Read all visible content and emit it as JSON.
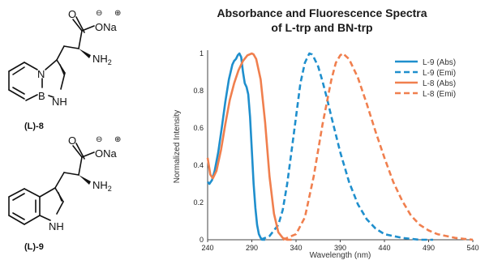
{
  "molecules": {
    "top": {
      "label": "(L)-8",
      "atoms": {
        "O": "O",
        "ONa": "ONa",
        "N_ring": "N",
        "B": "B",
        "NH": "NH",
        "NH2": "NH",
        "NH2_sub": "2",
        "minus": "⊖",
        "plus": "⊕"
      }
    },
    "bottom": {
      "label": "(L)-9",
      "atoms": {
        "O": "O",
        "ONa": "ONa",
        "NH": "NH",
        "NH2": "NH",
        "NH2_sub": "2",
        "minus": "⊖",
        "plus": "⊕"
      }
    }
  },
  "chart_data": {
    "type": "line",
    "title": "Absorbance and Fluorescence Spectra",
    "subtitle": "of L-trp and BN-trp",
    "xlabel": "Wavelength (nm)",
    "ylabel": "Normalized Intensity",
    "xlim": [
      240,
      540
    ],
    "ylim": [
      0,
      1
    ],
    "xticks": [
      240,
      290,
      340,
      390,
      440,
      490,
      540
    ],
    "yticks": [
      0,
      0.2,
      0.4,
      0.6,
      0.8,
      1
    ],
    "grid": false,
    "legend": "top-right",
    "series": [
      {
        "name": "L-9 (Abs)",
        "color": "#1f8fcd",
        "dash": "solid",
        "x": [
          240,
          242,
          245,
          248,
          252,
          256,
          260,
          264,
          268,
          270,
          272,
          274,
          276,
          278,
          280,
          282,
          284,
          286,
          288,
          290,
          292,
          294,
          296,
          298,
          300,
          302,
          305
        ],
        "y": [
          0.31,
          0.3,
          0.32,
          0.37,
          0.47,
          0.6,
          0.74,
          0.86,
          0.94,
          0.96,
          0.97,
          0.99,
          1.0,
          0.98,
          0.9,
          0.84,
          0.82,
          0.78,
          0.66,
          0.48,
          0.3,
          0.17,
          0.08,
          0.03,
          0.01,
          0.0,
          0.0
        ]
      },
      {
        "name": "L-9 (Emi)",
        "color": "#1f8fcd",
        "dash": "dashed",
        "x": [
          300,
          310,
          320,
          325,
          330,
          335,
          340,
          345,
          350,
          355,
          358,
          360,
          365,
          370,
          375,
          380,
          390,
          400,
          410,
          420,
          430,
          440,
          460,
          480,
          495
        ],
        "y": [
          0.0,
          0.02,
          0.08,
          0.16,
          0.3,
          0.48,
          0.66,
          0.84,
          0.95,
          1.0,
          0.995,
          0.98,
          0.93,
          0.85,
          0.76,
          0.66,
          0.47,
          0.31,
          0.19,
          0.11,
          0.06,
          0.03,
          0.01,
          0.0,
          0.0
        ]
      },
      {
        "name": "L-8 (Abs)",
        "color": "#f07f4e",
        "dash": "solid",
        "x": [
          240,
          243,
          246,
          250,
          255,
          260,
          265,
          270,
          275,
          280,
          285,
          290,
          292,
          295,
          300,
          305,
          310,
          315,
          320,
          325,
          330,
          335
        ],
        "y": [
          0.44,
          0.35,
          0.33,
          0.37,
          0.48,
          0.62,
          0.75,
          0.84,
          0.91,
          0.96,
          0.99,
          1.0,
          0.995,
          0.97,
          0.86,
          0.63,
          0.34,
          0.14,
          0.04,
          0.01,
          0.0,
          0.0
        ]
      },
      {
        "name": "L-8 (Emi)",
        "color": "#f07f4e",
        "dash": "dashed",
        "x": [
          325,
          340,
          350,
          360,
          370,
          380,
          385,
          390,
          393,
          400,
          410,
          420,
          430,
          440,
          450,
          460,
          470,
          480,
          490,
          500,
          510,
          520,
          530,
          540
        ],
        "y": [
          0.0,
          0.03,
          0.12,
          0.34,
          0.62,
          0.86,
          0.95,
          0.99,
          1.0,
          0.97,
          0.87,
          0.73,
          0.58,
          0.44,
          0.31,
          0.21,
          0.13,
          0.08,
          0.05,
          0.03,
          0.02,
          0.01,
          0.005,
          0.0
        ]
      }
    ]
  }
}
